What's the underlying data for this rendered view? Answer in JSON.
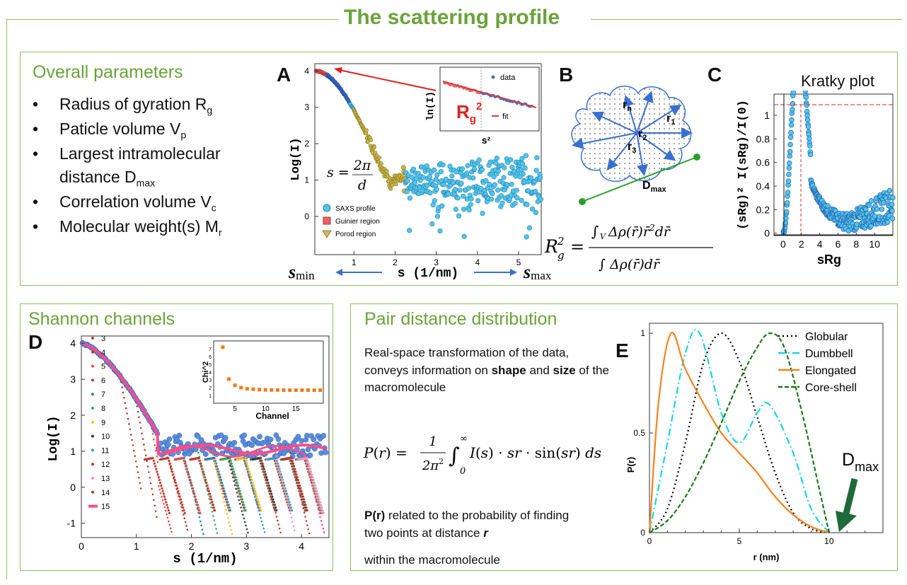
{
  "title": "The scattering profile",
  "overall": {
    "heading": "Overall parameters",
    "items": [
      {
        "text": "Radius of gyration R",
        "sub": "g"
      },
      {
        "text": "Paticle volume V",
        "sub": "p"
      },
      {
        "text": "Largest intramolecular",
        "sub": ""
      },
      {
        "text": "distance D",
        "sub": "max"
      },
      {
        "text": "Correlation volume V",
        "sub": "c"
      },
      {
        "text": "Molecular weight(s) M",
        "sub": "r"
      }
    ]
  },
  "panelA": {
    "letter": "A",
    "ylabel": "Log(I)",
    "xlabel": "s (1/nm)",
    "smin": "s",
    "smin_sub": "min",
    "smax": "s",
    "smax_sub": "max",
    "yticks": [
      "4",
      "3",
      "2",
      "1",
      "0"
    ],
    "xticks": [
      "1",
      "2",
      "3",
      "4",
      "5"
    ],
    "legend": [
      "SAXS profile",
      "Guinier region",
      "Porod region"
    ],
    "formula": "s = 2π / d",
    "inset": {
      "ylabel": "ln(I)",
      "xlabel": "s²",
      "rg": "R",
      "rg_sub": "g",
      "rg_sup": "2",
      "data": "data",
      "fit": "fit"
    }
  },
  "panelB": {
    "letter": "B",
    "labels": [
      "r",
      "r",
      "r",
      "r"
    ],
    "subs": [
      "n",
      "1",
      "2",
      "3"
    ],
    "dmax": "D",
    "dmax_sub": "max",
    "formula_lhs": "R",
    "formula_text": "R²g = ∫V Δρ(r̄) r̄² dr̄ / ∫ Δρ(r̄) dr̄"
  },
  "panelC": {
    "letter": "C",
    "title": "Kratky plot",
    "ylabel": "(sRg)² I(sRg)/I(0)",
    "xlabel": "sRg",
    "yticks": [
      "1",
      "0.8",
      "0.6",
      "0.4",
      "0.2",
      "0"
    ],
    "xticks": [
      "0",
      "2",
      "4",
      "6",
      "8",
      "10"
    ]
  },
  "shannon": {
    "heading": "Shannon channels",
    "letter": "D",
    "ylabel": "Log(I)",
    "xlabel": "s (1/nm)",
    "yticks": [
      "4",
      "3",
      "2",
      "1",
      "0",
      "-1"
    ],
    "xticks": [
      "0",
      "1",
      "2",
      "3",
      "4"
    ],
    "legend": [
      "3",
      "4",
      "5",
      "6",
      "7",
      "8",
      "9",
      "10",
      "11",
      "12",
      "13",
      "14",
      "15"
    ],
    "legend_colors": [
      "#c0392b",
      "#c0392b",
      "#e74c3c",
      "#c0392b",
      "#2980b9",
      "#27ae60",
      "#f1c40f",
      "#2c3e50",
      "#3498db",
      "#c0392b",
      "#ff8fb3",
      "#c0392b",
      "#ff4d88"
    ],
    "inset": {
      "ylabel": "Chi^2",
      "xlabel": "Channel",
      "xticks": [
        "5",
        "10",
        "15"
      ],
      "yticks": [
        "7",
        "6",
        "5",
        "4",
        "3",
        "2",
        "1"
      ]
    }
  },
  "pddf": {
    "heading": "Pair distance distribution",
    "letter": "E",
    "p1": "Real-space transformation of the data, conveys information on",
    "p1_bold1": "shape",
    "p1_and": "and",
    "p1_bold2": "size",
    "p1_end": "of the macromolecule",
    "formula": "P(r) = 1/(2π²) ∫₀^∞ I(s)·sr·sin(sr) ds",
    "p2_bold": "P(r)",
    "p2": "related to the probability of finding two points at distance",
    "p2_r": "r",
    "p3": "within the macromolecule",
    "chart": {
      "ylabel": "P(r)",
      "xlabel": "r (nm)",
      "yticks": [
        "1",
        "0.5",
        "0"
      ],
      "xticks": [
        "0",
        "5",
        "10"
      ],
      "dmax": "D",
      "dmax_sub": "max",
      "legend": [
        {
          "name": "Globular",
          "color": "#000000",
          "style": "dotted"
        },
        {
          "name": "Dumbbell",
          "color": "#19d3e6",
          "style": "dashdot"
        },
        {
          "name": "Elongated",
          "color": "#f7821b",
          "style": "solid"
        },
        {
          "name": "Core-shell",
          "color": "#1a7a1a",
          "style": "dashed"
        }
      ]
    }
  },
  "chart_data": [
    {
      "type": "line",
      "title": "",
      "xlabel": "r (nm)",
      "ylabel": "P(r)",
      "xlim": [
        0,
        13
      ],
      "ylim": [
        0,
        1.05
      ],
      "series": [
        {
          "name": "Globular",
          "x": [
            0,
            1,
            2,
            3,
            4,
            5,
            6,
            7,
            8,
            9,
            10
          ],
          "values": [
            0,
            0.12,
            0.45,
            0.85,
            1.0,
            0.86,
            0.58,
            0.3,
            0.1,
            0.02,
            0
          ]
        },
        {
          "name": "Dumbbell",
          "x": [
            0,
            1,
            2,
            2.8,
            4,
            5,
            6,
            6.7,
            8,
            9,
            10
          ],
          "values": [
            0,
            0.45,
            0.9,
            1.0,
            0.6,
            0.45,
            0.6,
            0.64,
            0.4,
            0.12,
            0
          ]
        },
        {
          "name": "Elongated",
          "x": [
            0,
            0.5,
            1.2,
            2,
            3,
            4,
            5,
            6,
            7,
            8,
            9,
            10
          ],
          "values": [
            0,
            0.65,
            1.0,
            0.82,
            0.65,
            0.5,
            0.4,
            0.3,
            0.18,
            0.09,
            0.03,
            0
          ]
        },
        {
          "name": "Core-shell",
          "x": [
            0,
            1,
            2,
            3,
            4,
            5,
            6,
            6.7,
            7.5,
            8.5,
            9.5,
            10
          ],
          "values": [
            0,
            0.06,
            0.18,
            0.35,
            0.55,
            0.76,
            0.93,
            1.0,
            0.93,
            0.6,
            0.2,
            0
          ]
        }
      ]
    }
  ]
}
